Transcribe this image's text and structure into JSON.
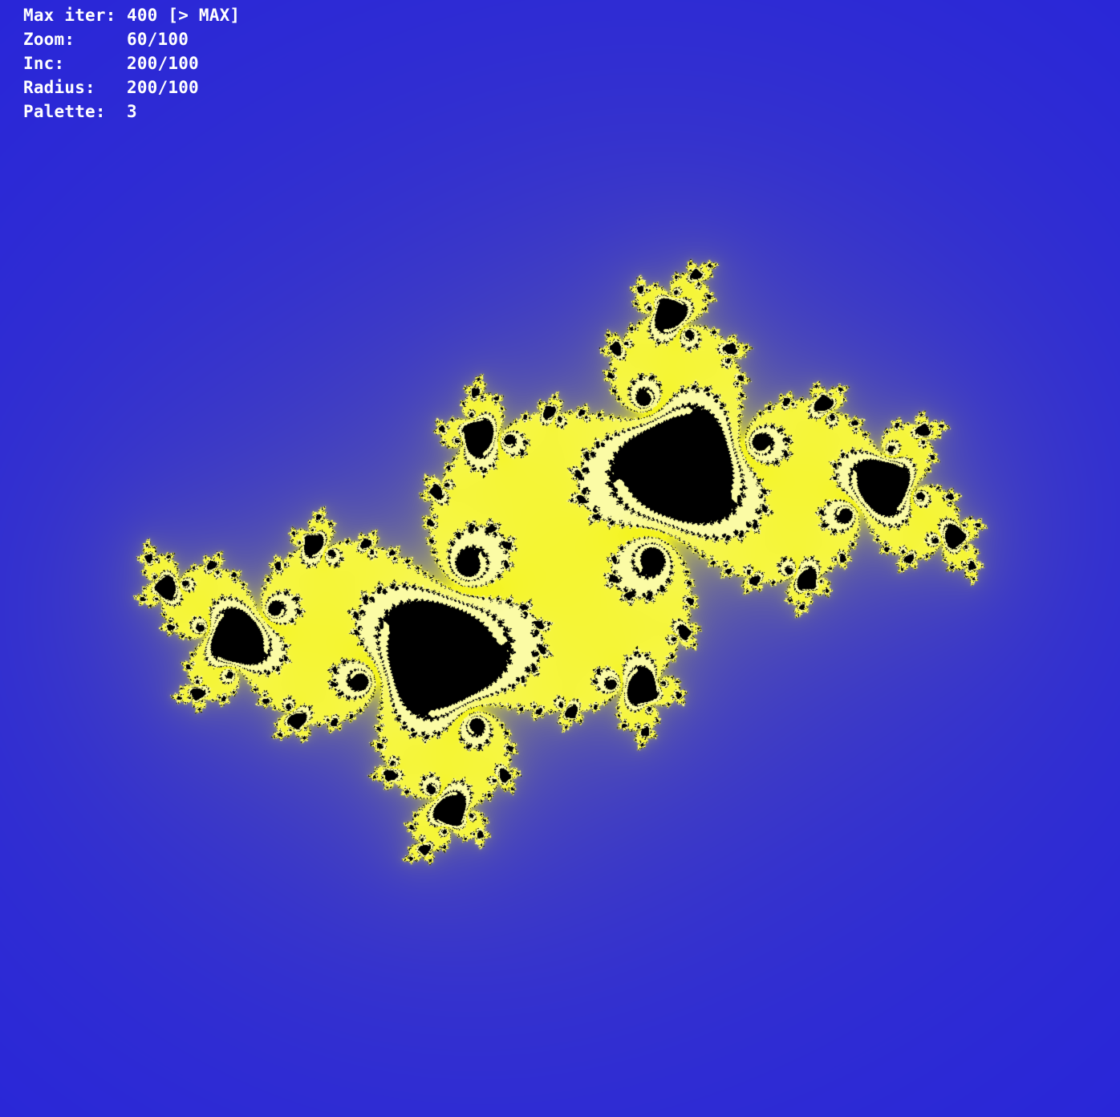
{
  "hud": {
    "rows": [
      {
        "label": "Max iter:",
        "value": "400 [> MAX]"
      },
      {
        "label": "Zoom:",
        "value": "60/100"
      },
      {
        "label": "Inc:",
        "value": "200/100"
      },
      {
        "label": "Radius:",
        "value": "200/100"
      },
      {
        "label": "Palette:",
        "value": "3"
      }
    ]
  },
  "fractal": {
    "background_color": "#1a17e6",
    "glow_color": "#f4f41e",
    "core_color": "#000000"
  }
}
